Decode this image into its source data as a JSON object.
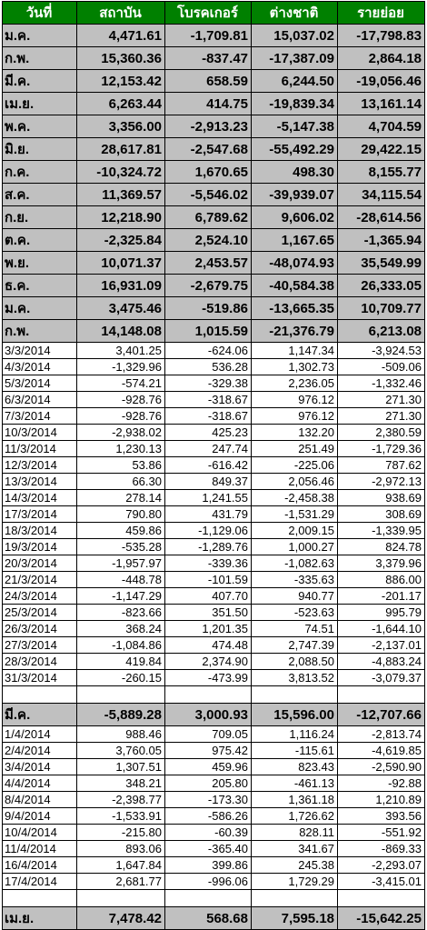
{
  "header": [
    "วันที่",
    "สถาบัน",
    "โบรคเกอร์",
    "ต่างชาติ",
    "รายย่อย"
  ],
  "colors": {
    "header_bg": "#008000",
    "header_text": "#ffffff",
    "month_bg": "#c0c0c0",
    "negative": "#ff0000"
  },
  "monthly": [
    [
      "ม.ค.",
      "4,471.61",
      "-1,709.81",
      "15,037.02",
      "-17,798.83"
    ],
    [
      "ก.พ.",
      "15,360.36",
      "-837.47",
      "-17,387.09",
      "2,864.18"
    ],
    [
      "มี.ค.",
      "12,153.42",
      "658.59",
      "6,244.50",
      "-19,056.46"
    ],
    [
      "เม.ย.",
      "6,263.44",
      "414.75",
      "-19,839.34",
      "13,161.14"
    ],
    [
      "พ.ค.",
      "3,356.00",
      "-2,913.23",
      "-5,147.38",
      "4,704.59"
    ],
    [
      "มิ.ย.",
      "28,617.81",
      "-2,547.68",
      "-55,492.29",
      "29,422.15"
    ],
    [
      "ก.ค.",
      "-10,324.72",
      "1,670.65",
      "498.30",
      "8,155.77"
    ],
    [
      "ส.ค.",
      "11,369.57",
      "-5,546.02",
      "-39,939.07",
      "34,115.54"
    ],
    [
      "ก.ย.",
      "12,218.90",
      "6,789.62",
      "9,606.02",
      "-28,614.56"
    ],
    [
      "ต.ค.",
      "-2,325.84",
      "2,524.10",
      "1,167.65",
      "-1,365.94"
    ],
    [
      "พ.ย.",
      "10,071.37",
      "2,453.57",
      "-48,074.93",
      "35,549.99"
    ],
    [
      "ธ.ค.",
      "16,931.09",
      "-2,679.75",
      "-40,584.38",
      "26,333.05"
    ],
    [
      "ม.ค.",
      "3,475.46",
      "-519.86",
      "-13,665.35",
      "10,709.77"
    ],
    [
      "ก.พ.",
      "14,148.08",
      "1,015.59",
      "-21,376.79",
      "6,213.08"
    ]
  ],
  "march_days": [
    [
      "3/3/2014",
      "3,401.25",
      "-624.06",
      "1,147.34",
      "-3,924.53"
    ],
    [
      "4/3/2014",
      "-1,329.96",
      "536.28",
      "1,302.73",
      "-509.06"
    ],
    [
      "5/3/2014",
      "-574.21",
      "-329.38",
      "2,236.05",
      "-1,332.46"
    ],
    [
      "6/3/2014",
      "-928.76",
      "-318.67",
      "976.12",
      "271.30"
    ],
    [
      "7/3/2014",
      "-928.76",
      "-318.67",
      "976.12",
      "271.30"
    ],
    [
      "10/3/2014",
      "-2,938.02",
      "425.23",
      "132.20",
      "2,380.59"
    ],
    [
      "11/3/2014",
      "1,230.13",
      "247.74",
      "251.49",
      "-1,729.36"
    ],
    [
      "12/3/2014",
      "53.86",
      "-616.42",
      "-225.06",
      "787.62"
    ],
    [
      "13/3/2014",
      "66.30",
      "849.37",
      "2,056.46",
      "-2,972.13"
    ],
    [
      "14/3/2014",
      "278.14",
      "1,241.55",
      "-2,458.38",
      "938.69"
    ],
    [
      "17/3/2014",
      "790.80",
      "431.79",
      "-1,531.29",
      "308.69"
    ],
    [
      "18/3/2014",
      "459.86",
      "-1,129.06",
      "2,009.15",
      "-1,339.95"
    ],
    [
      "19/3/2014",
      "-535.28",
      "-1,289.76",
      "1,000.27",
      "824.78"
    ],
    [
      "20/3/2014",
      "-1,957.97",
      "-339.36",
      "-1,082.63",
      "3,379.96"
    ],
    [
      "21/3/2014",
      "-448.78",
      "-101.59",
      "-335.63",
      "886.00"
    ],
    [
      "24/3/2014",
      "-1,147.29",
      "407.70",
      "940.77",
      "-201.17"
    ],
    [
      "25/3/2014",
      "-823.66",
      "351.50",
      "-523.63",
      "995.79"
    ],
    [
      "26/3/2014",
      "368.24",
      "1,201.35",
      "74.51",
      "-1,644.10"
    ],
    [
      "27/3/2014",
      "-1,084.86",
      "474.48",
      "2,747.39",
      "-2,137.01"
    ],
    [
      "28/3/2014",
      "419.84",
      "2,374.90",
      "2,088.50",
      "-4,883.24"
    ],
    [
      "31/3/2014",
      "-260.15",
      "-473.99",
      "3,813.52",
      "-3,079.37"
    ]
  ],
  "march_total": [
    "มี.ค.",
    "-5,889.28",
    "3,000.93",
    "15,596.00",
    "-12,707.66"
  ],
  "april_days": [
    [
      "1/4/2014",
      "988.46",
      "709.05",
      "1,116.24",
      "-2,813.74"
    ],
    [
      "2/4/2014",
      "3,760.05",
      "975.42",
      "-115.61",
      "-4,619.85"
    ],
    [
      "3/4/2014",
      "1,307.51",
      "459.96",
      "823.43",
      "-2,590.90"
    ],
    [
      "4/4/2014",
      "348.21",
      "205.80",
      "-461.13",
      "-92.88"
    ],
    [
      "8/4/2014",
      "-2,398.77",
      "-173.30",
      "1,361.18",
      "1,210.89"
    ],
    [
      "9/4/2014",
      "-1,533.91",
      "-586.26",
      "1,726.62",
      "393.56"
    ],
    [
      "10/4/2014",
      "-215.80",
      "-60.39",
      "828.11",
      "-551.92"
    ],
    [
      "11/4/2014",
      "893.06",
      "-365.40",
      "341.67",
      "-869.33"
    ],
    [
      "16/4/2014",
      "1,647.84",
      "399.86",
      "245.38",
      "-2,293.07"
    ],
    [
      "17/4/2014",
      "2,681.77",
      "-996.06",
      "1,729.29",
      "-3,415.01"
    ]
  ],
  "april_total": [
    "เม.ย.",
    "7,478.42",
    "568.68",
    "7,595.18",
    "-15,642.25"
  ]
}
